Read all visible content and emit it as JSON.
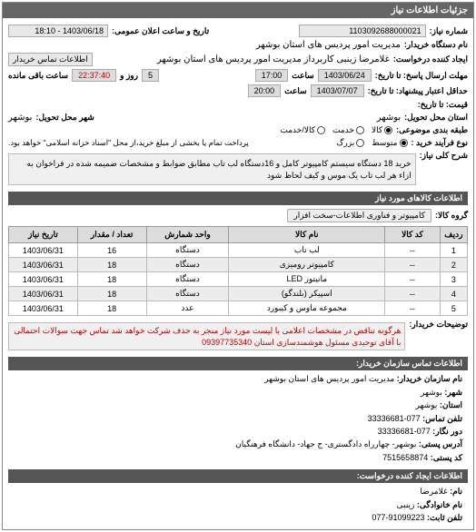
{
  "panel_title": "جزئیات اطلاعات نیاز",
  "ref_no_label": "شماره نیاز:",
  "ref_no": "1103092688000021",
  "public_date_label": "تاریخ و ساعت اعلان عمومی:",
  "public_date": "1403/06/18 - 18:10",
  "buyer_name_label": "نام دستگاه خریدار:",
  "buyer_name": "مدیریت امور پردیس های استان بوشهر",
  "requester_label": "ایجاد کننده درخواست:",
  "requester": "غلامرضا زینبی کاربرداز مدیریت امور پردیس های استان بوشهر",
  "buyer_contact_label": "اطلاعات تماس خریدار",
  "deadline_label": "مهلت ارسال پاسخ: تا تاریخ:",
  "deadline_date": "1403/06/24",
  "time_label": "ساعت",
  "deadline_time": "17:00",
  "days_remain_label": "روز و",
  "days_remain": "5",
  "time_remain": "22:37:40",
  "time_remain_label": "ساعت باقی مانده",
  "delivery_label": "حداقل اعتبار پیشنهاد: تا تاریخ:",
  "delivery_date": "1403/07/07",
  "delivery_time": "20:00",
  "price_label": "قیمت: تا تاریخ:",
  "delivery_place_label": "استان محل تحویل:",
  "delivery_place": "بوشهر",
  "city_label": "شهر محل تحویل:",
  "city": "بوشهر",
  "budget_label": "طبقه بندی موضوعی:",
  "budget_options": [
    "کالا",
    "خدمت",
    "کالا/خدمت"
  ],
  "budget_selected": 0,
  "process_label": "نوع فرآیند خرید :",
  "process_options": [
    "متوسط",
    "بزرگ"
  ],
  "process_selected": 0,
  "process_note": "پرداخت تمام یا بخشی از مبلغ خرید،از محل \"اسناد خزانه اسلامی\" خواهد بود.",
  "need_desc_label": "شرح کلی نیاز:",
  "need_desc": "خرید 18 دستگاه سیستم کامپیوتر کامل و 16دستگاه لب تاب مطابق ضوابط و مشخصات ضمیمه شده در فراخوان به ازاء هر لب تاب یک موس و کیف لحاظ شود",
  "goods_header": "اطلاعات کالاهای مورد نیاز",
  "group_label": "گروه کالا:",
  "group": "کامپیوتر و فناوری اطلاعات-سخت افزار",
  "table": {
    "columns": [
      "ردیف",
      "کد کالا",
      "نام کالا",
      "واحد شمارش",
      "تعداد / مقدار",
      "تاریخ نیاز"
    ],
    "rows": [
      [
        "1",
        "--",
        "لب تاب",
        "دستگاه",
        "16",
        "1403/06/31"
      ],
      [
        "2",
        "--",
        "کامپیوتر رومیزی",
        "دستگاه",
        "18",
        "1403/06/31"
      ],
      [
        "3",
        "--",
        "مانیتور LED",
        "دستگاه",
        "18",
        "1403/06/31"
      ],
      [
        "4",
        "--",
        "اسپیکر (بلندگو)",
        "دستگاه",
        "18",
        "1403/06/31"
      ],
      [
        "5",
        "--",
        "مجموعه ماوس و کیبورد",
        "عدد",
        "18",
        "1403/06/31"
      ]
    ],
    "col_widths": [
      "6%",
      "12%",
      "34%",
      "18%",
      "15%",
      "15%"
    ]
  },
  "notes_label": "توضیحات خریدار:",
  "notes": "هرگونه تناقض در مشخصات اعلامی با لیست مورد نیاز منجر به حذف شرکت خواهد شد تماس جهت سوالات احتمالی با آقای توحیدی مسئول هوشمندسازی استان 09397735340",
  "contact_header": "اطلاعات تماس سازمان خریدار:",
  "org_name_label": "نام سازمان خریدار:",
  "org_name": "مدیریت امور پردیس های استان بوشهر",
  "org_city_label": "شهر:",
  "org_city": "بوشهر",
  "org_province_label": "استان:",
  "org_province": "بوشهر",
  "org_phone_label": "تلفن تماس:",
  "org_phone": "077-33336681",
  "org_fax_label": "دور نگار:",
  "org_fax": "077-33336681",
  "org_address_label": "آدرس پستی:",
  "org_address": "بوشهر- چهارراه دادگستری- ج جهاد- دانشگاه فرهنگیان",
  "org_postal_label": "کد پستی:",
  "org_postal": "7515658874",
  "person_header": "اطلاعات ایجاد کننده درخواست:",
  "p_name_label": "نام:",
  "p_name": "غلامرضا",
  "p_surname_label": "نام خانوادگی:",
  "p_surname": "زینبی",
  "p_phone_label": "تلفن ثابت:",
  "p_phone": "91099223-077"
}
